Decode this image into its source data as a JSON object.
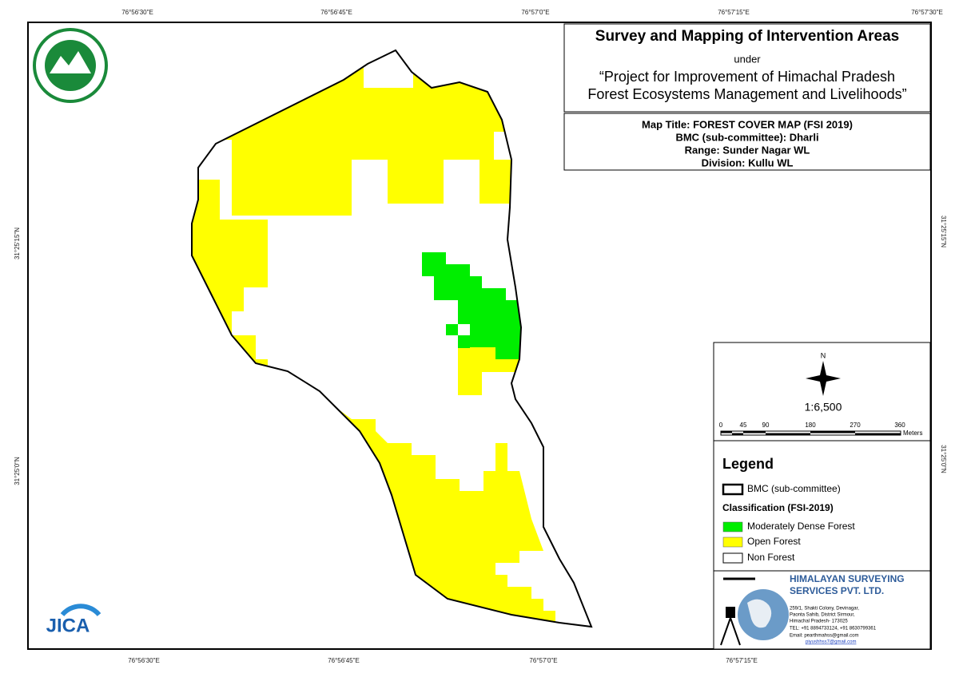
{
  "coordinates": {
    "top": [
      "76°56'30\"E",
      "76°56'45\"E",
      "76°57'0\"E",
      "76°57'15\"E",
      "76°57'30\"E"
    ],
    "bottom": [
      "76°56'30\"E",
      "76°56'45\"E",
      "76°57'0\"E",
      "76°57'15\"E"
    ],
    "left": [
      "31°25'15\"N",
      "31°25'0\"N"
    ],
    "right": [
      "31°25'15\"N",
      "31°25'0\"N"
    ]
  },
  "header": {
    "title": "Survey and Mapping of Intervention Areas",
    "under": "under",
    "project": [
      "“Project for Improvement of Himachal Pradesh",
      "Forest Ecosystems Management and Livelihoods”"
    ]
  },
  "map_info": [
    "Map Title: FOREST COVER MAP (FSI 2019)",
    "BMC (sub-committee): Dharli",
    "Range: Sunder Nagar WL",
    "Division: Kullu WL"
  ],
  "north": "N",
  "scale": "1:6,500",
  "scale_bar": {
    "labels": [
      "0",
      "45",
      "90",
      "180",
      "270",
      "360"
    ],
    "unit": "Meters"
  },
  "legend": {
    "title": "Legend",
    "boundary": "BMC (sub-committee)",
    "classification": "Classification (FSI-2019)",
    "items": [
      "Moderately Dense Forest",
      "Open Forest",
      "Non Forest"
    ]
  },
  "company": {
    "name": [
      "HIMALAYAN SURVEYING",
      "SERVICES PVT. LTD."
    ],
    "address": [
      "259/1, Shakti Colony, Devinagar,",
      "Paonta Sahib, District Sirmour,",
      "Himachal Pradesh- 173025",
      "TEL: +91 8894733124, +91 8630799361",
      "Email: pearthmahss@gmail.com",
      "piyushhss7@gmail.com"
    ]
  },
  "jica": "JICA"
}
